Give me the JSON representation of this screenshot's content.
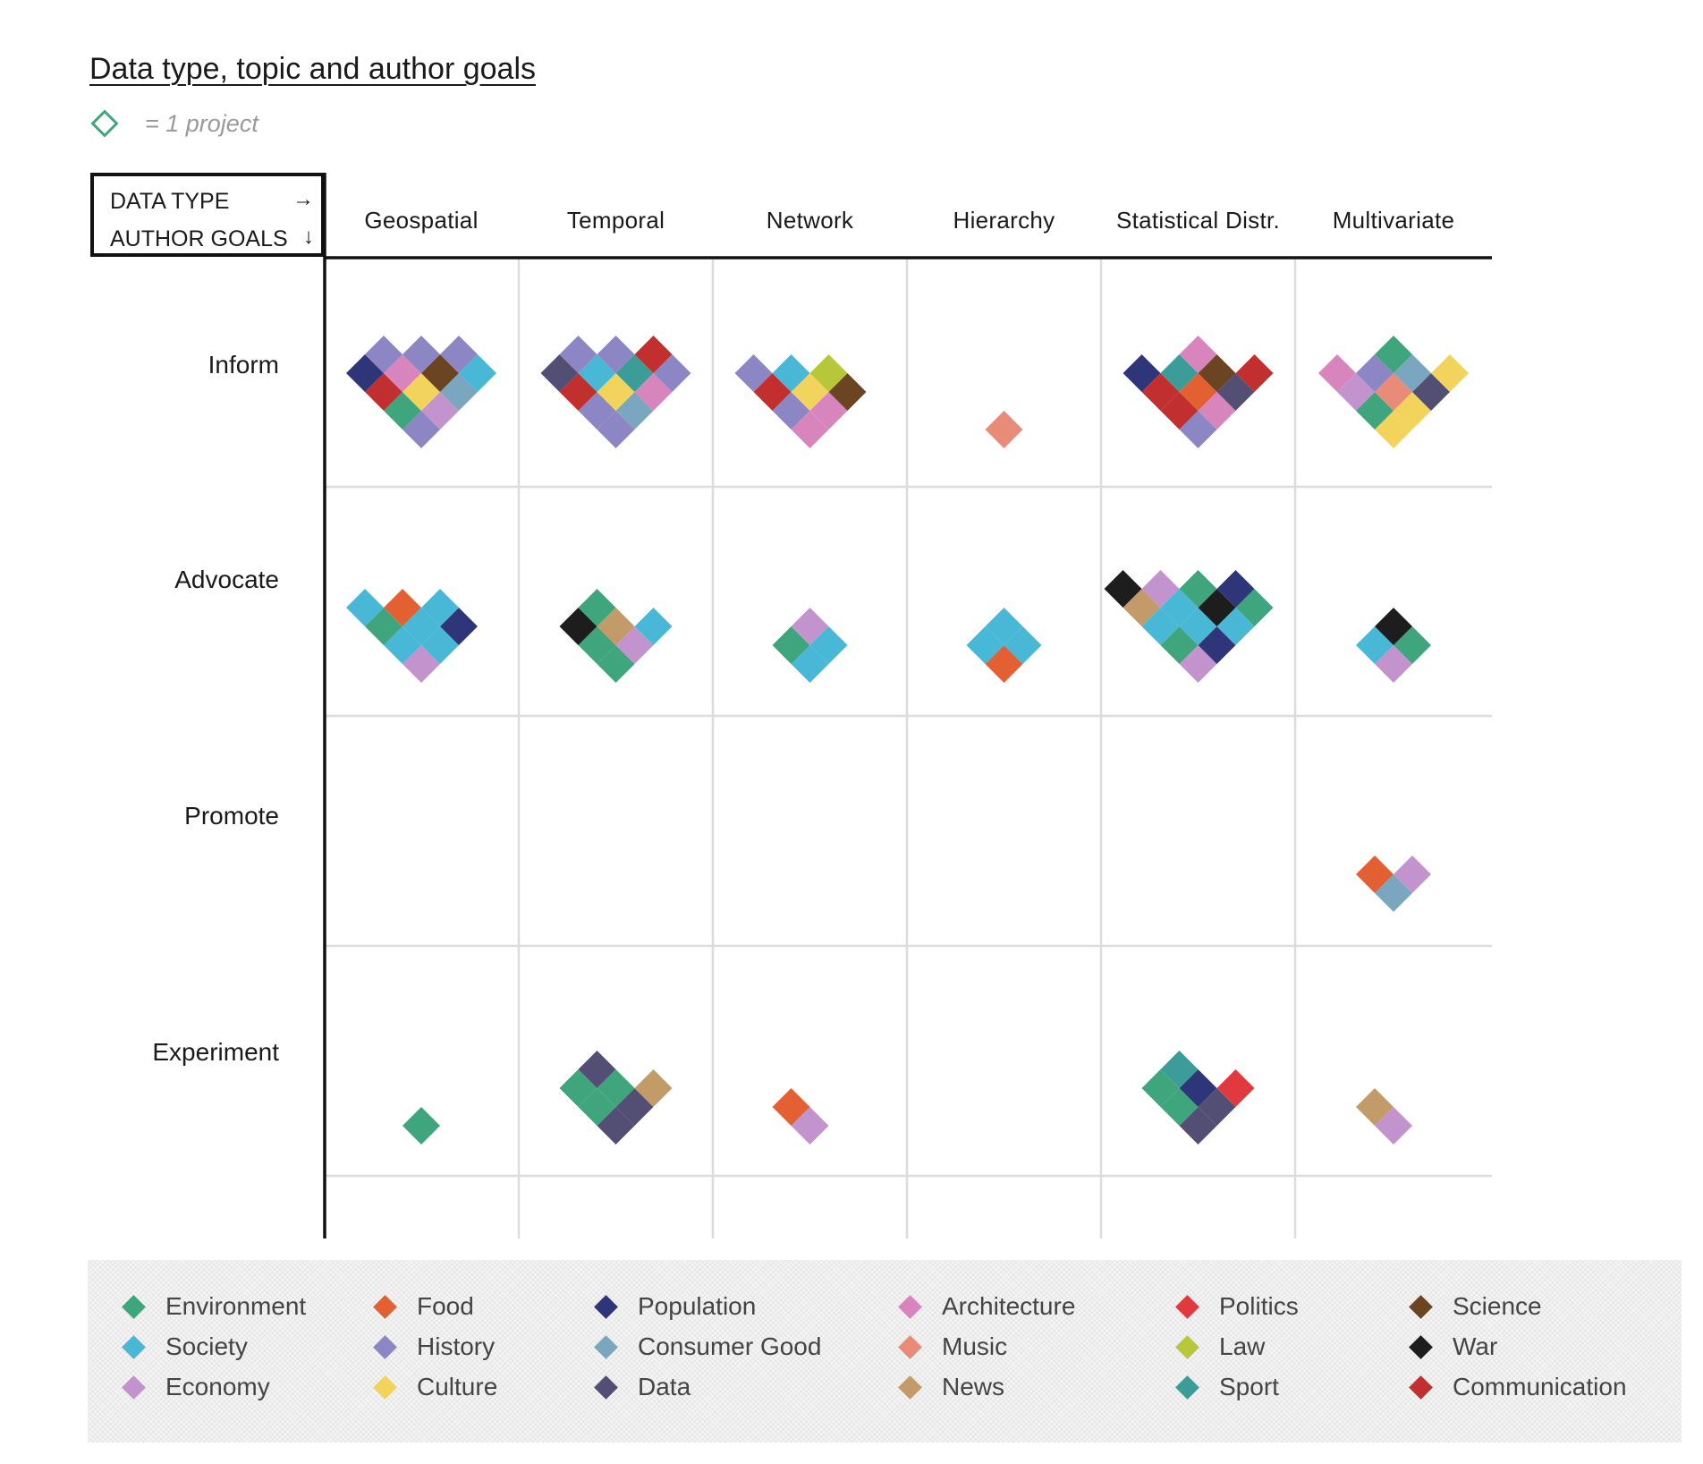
{
  "chart_data": {
    "type": "table",
    "title": "Data type, topic and author goals",
    "key_label": "= 1 project",
    "corner": {
      "col_header": "DATA TYPE",
      "col_arrow": "→",
      "row_header": "AUTHOR GOALS",
      "row_arrow": "↓"
    },
    "columns": [
      "Geospatial",
      "Temporal",
      "Network",
      "Hierarchy",
      "Statistical Distr.",
      "Multivariate"
    ],
    "rows": [
      "Inform",
      "Advocate",
      "Promote",
      "Experiment"
    ],
    "topics": [
      {
        "name": "Environment",
        "color": "#3fa57c"
      },
      {
        "name": "Society",
        "color": "#48b8d6"
      },
      {
        "name": "Economy",
        "color": "#c293cc"
      },
      {
        "name": "Food",
        "color": "#e36033"
      },
      {
        "name": "History",
        "color": "#8c86c4"
      },
      {
        "name": "Culture",
        "color": "#f2d35b"
      },
      {
        "name": "Population",
        "color": "#2e3679"
      },
      {
        "name": "Consumer Good",
        "color": "#7aa6bf"
      },
      {
        "name": "Data",
        "color": "#534f74"
      },
      {
        "name": "Architecture",
        "color": "#d885be"
      },
      {
        "name": "Music",
        "color": "#e88c79"
      },
      {
        "name": "News",
        "color": "#c29b68"
      },
      {
        "name": "Politics",
        "color": "#e03a3e"
      },
      {
        "name": "Law",
        "color": "#b6c83a"
      },
      {
        "name": "Sport",
        "color": "#3b9c98"
      },
      {
        "name": "Science",
        "color": "#6b4422"
      },
      {
        "name": "War",
        "color": "#1d1d1d"
      },
      {
        "name": "Communication",
        "color": "#c12f2f"
      }
    ],
    "cells": [
      {
        "row": "Inform",
        "column": "Geospatial",
        "count": 13,
        "topics": [
          "History",
          "Environment",
          "Economy",
          "Culture",
          "Communication",
          "Consumer Good",
          "Architecture",
          "Science",
          "Population",
          "Society",
          "History",
          "History",
          "History"
        ]
      },
      {
        "row": "Inform",
        "column": "Temporal",
        "count": 13,
        "topics": [
          "History",
          "History",
          "Consumer Good",
          "Culture",
          "Communication",
          "Architecture",
          "Society",
          "Sport",
          "Data",
          "History",
          "History",
          "History",
          "Communication"
        ]
      },
      {
        "row": "Inform",
        "column": "Network",
        "count": 9,
        "topics": [
          "Architecture",
          "History",
          "Architecture",
          "Culture",
          "Communication",
          "Science",
          "Society",
          "Law",
          "History"
        ]
      },
      {
        "row": "Inform",
        "column": "Hierarchy",
        "count": 1,
        "topics": [
          "Music"
        ]
      },
      {
        "row": "Inform",
        "column": "Statistical Distr.",
        "count": 11,
        "topics": [
          "History",
          "Communication",
          "Architecture",
          "Food",
          "Communication",
          "Data",
          "Sport",
          "Science",
          "Population",
          "Communication",
          "Architecture"
        ]
      },
      {
        "row": "Inform",
        "column": "Multivariate",
        "count": 11,
        "topics": [
          "Culture",
          "Environment",
          "Culture",
          "Music",
          "Economy",
          "Data",
          "History",
          "Consumer Good",
          "Architecture",
          "Culture",
          "Environment"
        ]
      },
      {
        "row": "Advocate",
        "column": "Geospatial",
        "count": 9,
        "topics": [
          "Economy",
          "Society",
          "Society",
          "Society",
          "Environment",
          "Population",
          "Food",
          "Society",
          "Society"
        ]
      },
      {
        "row": "Advocate",
        "column": "Temporal",
        "count": 7,
        "topics": [
          "Environment",
          "Environment",
          "Economy",
          "News",
          "War",
          "Society",
          "Environment"
        ]
      },
      {
        "row": "Advocate",
        "column": "Network",
        "count": 4,
        "topics": [
          "Society",
          "Environment",
          "Society",
          "Economy"
        ]
      },
      {
        "row": "Advocate",
        "column": "Hierarchy",
        "count": 4,
        "topics": [
          "Food",
          "Society",
          "Society",
          "Society"
        ]
      },
      {
        "row": "Advocate",
        "column": "Statistical Distr.",
        "count": 14,
        "topics": [
          "Economy",
          "Environment",
          "Population",
          "Society",
          "Society",
          "Society",
          "Society",
          "War",
          "News",
          "Environment",
          "Environment",
          "Economy",
          "Population",
          "War"
        ]
      },
      {
        "row": "Advocate",
        "column": "Multivariate",
        "count": 4,
        "topics": [
          "Economy",
          "Society",
          "Environment",
          "War"
        ]
      },
      {
        "row": "Promote",
        "column": "Multivariate",
        "count": 3,
        "topics": [
          "Consumer Good",
          "Food",
          "Economy"
        ]
      },
      {
        "row": "Experiment",
        "column": "Geospatial",
        "count": 1,
        "topics": [
          "Environment"
        ]
      },
      {
        "row": "Experiment",
        "column": "Temporal",
        "count": 7,
        "topics": [
          "Data",
          "Environment",
          "Data",
          "Environment",
          "Environment",
          "News",
          "Data"
        ]
      },
      {
        "row": "Experiment",
        "column": "Network",
        "count": 2,
        "topics": [
          "Economy",
          "Food"
        ]
      },
      {
        "row": "Experiment",
        "column": "Statistical Distr.",
        "count": 7,
        "topics": [
          "Data",
          "Environment",
          "Data",
          "Population",
          "Environment",
          "Politics",
          "Sport"
        ]
      },
      {
        "row": "Experiment",
        "column": "Multivariate",
        "count": 2,
        "topics": [
          "Economy",
          "News"
        ]
      }
    ]
  }
}
